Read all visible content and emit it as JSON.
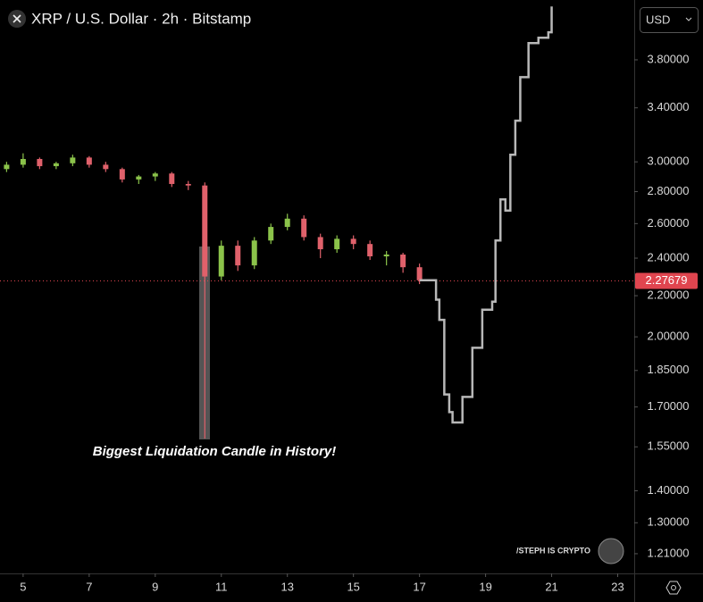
{
  "chart_data": {
    "type": "candlestick",
    "title": "XRP / U.S. Dollar · 2h · Bitstamp",
    "currency": "USD",
    "annotation": "Biggest Liquidation Candle in History!",
    "watermark": "/STEPH IS CRYPTO",
    "log_scale": true,
    "up_color": "#8bc34a",
    "down_color": "#e0616b",
    "x": [
      4.5,
      5,
      5.5,
      6,
      6.5,
      7,
      7.5,
      8,
      8.5,
      9,
      9.5,
      10,
      10.5,
      11,
      11.5,
      12,
      12.5,
      13,
      13.5,
      14,
      14.5,
      15,
      15.5,
      16,
      16.5,
      17
    ],
    "open": [
      2.95,
      2.98,
      3.02,
      2.97,
      2.99,
      3.03,
      2.98,
      2.95,
      2.88,
      2.9,
      2.92,
      2.85,
      2.84,
      2.3,
      2.47,
      2.36,
      2.5,
      2.58,
      2.63,
      2.52,
      2.45,
      2.51,
      2.48,
      2.41,
      2.42,
      2.35
    ],
    "high": [
      3.0,
      3.06,
      3.03,
      3.0,
      3.05,
      3.04,
      3.0,
      2.96,
      2.91,
      2.93,
      2.93,
      2.87,
      2.86,
      2.5,
      2.5,
      2.52,
      2.6,
      2.66,
      2.65,
      2.54,
      2.53,
      2.53,
      2.5,
      2.44,
      2.43,
      2.37
    ],
    "low": [
      2.93,
      2.96,
      2.95,
      2.95,
      2.97,
      2.96,
      2.93,
      2.86,
      2.85,
      2.87,
      2.83,
      2.81,
      1.58,
      2.28,
      2.33,
      2.34,
      2.48,
      2.56,
      2.5,
      2.4,
      2.43,
      2.45,
      2.39,
      2.36,
      2.32,
      2.26
    ],
    "close": [
      2.98,
      3.02,
      2.97,
      2.99,
      3.03,
      2.98,
      2.95,
      2.88,
      2.9,
      2.92,
      2.85,
      2.84,
      2.3,
      2.47,
      2.36,
      2.5,
      2.58,
      2.63,
      2.52,
      2.45,
      2.51,
      2.48,
      2.41,
      2.42,
      2.35,
      2.28
    ],
    "projection": {
      "color": "#b8b8b8",
      "x": [
        17.0,
        17.35,
        17.5,
        17.6,
        17.75,
        17.9,
        18.0,
        18.3,
        18.6,
        18.9,
        19.2,
        19.3,
        19.45,
        19.6,
        19.75,
        19.9,
        20.05,
        20.3,
        20.6,
        20.9,
        21.0
      ],
      "values": [
        2.28,
        2.28,
        2.18,
        2.08,
        1.75,
        1.68,
        1.64,
        1.74,
        1.95,
        2.13,
        2.17,
        2.5,
        2.75,
        2.68,
        3.05,
        3.3,
        3.65,
        3.95,
        4.0,
        4.05,
        4.3
      ]
    },
    "last_price": 2.27679,
    "last_price_color": "#e0454f",
    "xlim": [
      4.3,
      23.5
    ],
    "xticks": [
      5,
      7,
      9,
      11,
      13,
      15,
      17,
      19,
      21,
      23
    ],
    "ylim": [
      1.156,
      4.32
    ],
    "yticks": [
      {
        "value": 1.21,
        "label": "1.21000"
      },
      {
        "value": 1.3,
        "label": "1.30000"
      },
      {
        "value": 1.4,
        "label": "1.40000"
      },
      {
        "value": 1.55,
        "label": "1.55000"
      },
      {
        "value": 1.7,
        "label": "1.70000"
      },
      {
        "value": 1.85,
        "label": "1.85000"
      },
      {
        "value": 2.0,
        "label": "2.00000"
      },
      {
        "value": 2.2,
        "label": "2.20000"
      },
      {
        "value": 2.4,
        "label": "2.40000"
      },
      {
        "value": 2.6,
        "label": "2.60000"
      },
      {
        "value": 2.8,
        "label": "2.80000"
      },
      {
        "value": 3.0,
        "label": "3.00000"
      },
      {
        "value": 3.4,
        "label": "3.40000"
      },
      {
        "value": 3.8,
        "label": "3.80000"
      }
    ]
  }
}
